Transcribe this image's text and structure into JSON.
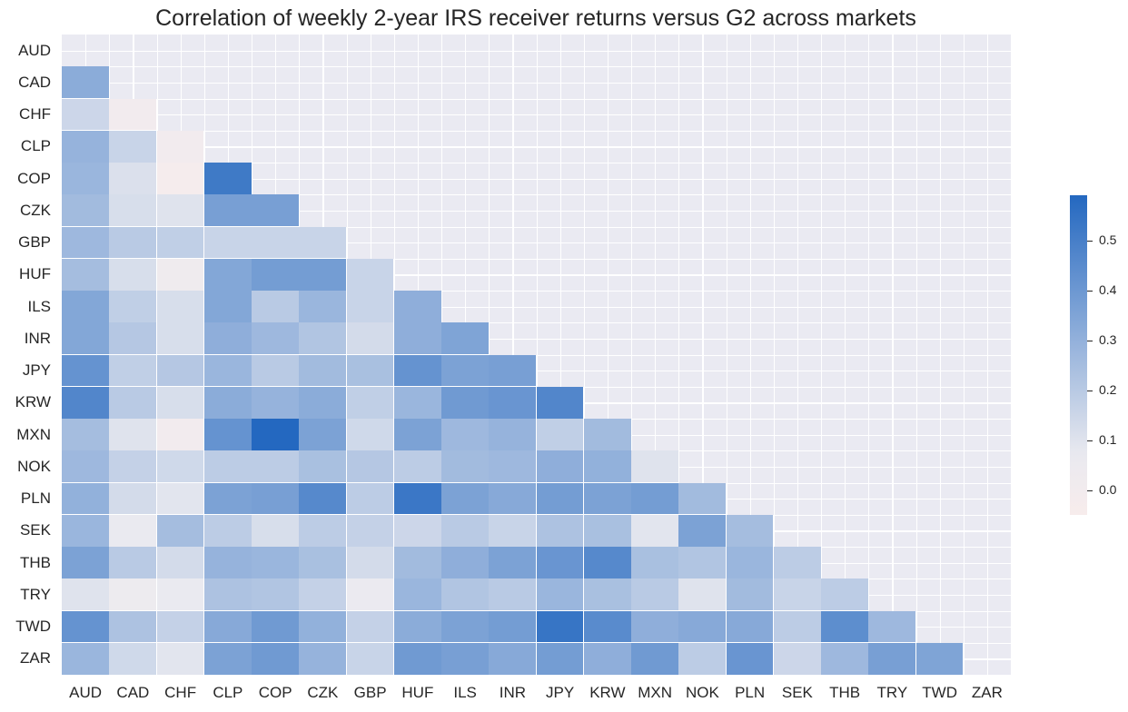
{
  "chart_data": {
    "type": "heatmap",
    "title": "Correlation of weekly 2-year IRS receiver returns versus G2 across markets",
    "xlabel": "",
    "ylabel": "",
    "labels": [
      "AUD",
      "CAD",
      "CHF",
      "CLP",
      "COP",
      "CZK",
      "GBP",
      "HUF",
      "ILS",
      "INR",
      "JPY",
      "KRW",
      "MXN",
      "NOK",
      "PLN",
      "SEK",
      "THB",
      "TRY",
      "TWD",
      "ZAR"
    ],
    "mask": "upper triangle including diagonal",
    "colorbar": {
      "min": -0.05,
      "max": 0.59,
      "ticks": [
        0.0,
        0.1,
        0.2,
        0.3,
        0.4,
        0.5
      ],
      "tick_labels": [
        "0.0",
        "0.1",
        "0.2",
        "0.3",
        "0.4",
        "0.5"
      ],
      "low_color": "#f7ecec",
      "mid_color": "#eaeaf0",
      "high_color": "#2468c0"
    },
    "values": [
      [],
      [
        0.32
      ],
      [
        0.15,
        0.0
      ],
      [
        0.29,
        0.16,
        0.0
      ],
      [
        0.28,
        0.11,
        -0.03,
        0.52
      ],
      [
        0.26,
        0.12,
        0.1,
        0.37,
        0.37
      ],
      [
        0.27,
        0.2,
        0.18,
        0.16,
        0.16,
        0.16
      ],
      [
        0.25,
        0.12,
        0.02,
        0.34,
        0.38,
        0.38,
        0.16
      ],
      [
        0.34,
        0.18,
        0.12,
        0.34,
        0.2,
        0.28,
        0.16,
        0.31
      ],
      [
        0.34,
        0.21,
        0.12,
        0.31,
        0.27,
        0.22,
        0.13,
        0.31,
        0.35
      ],
      [
        0.42,
        0.18,
        0.21,
        0.28,
        0.2,
        0.26,
        0.24,
        0.42,
        0.36,
        0.37
      ],
      [
        0.47,
        0.2,
        0.12,
        0.32,
        0.29,
        0.32,
        0.18,
        0.28,
        0.39,
        0.41,
        0.47
      ],
      [
        0.25,
        0.1,
        0.0,
        0.42,
        0.59,
        0.36,
        0.14,
        0.36,
        0.27,
        0.29,
        0.18,
        0.26
      ],
      [
        0.27,
        0.17,
        0.14,
        0.19,
        0.19,
        0.24,
        0.21,
        0.19,
        0.26,
        0.27,
        0.31,
        0.3,
        0.1
      ],
      [
        0.3,
        0.13,
        0.09,
        0.36,
        0.37,
        0.46,
        0.19,
        0.53,
        0.36,
        0.33,
        0.38,
        0.36,
        0.38,
        0.26
      ],
      [
        0.28,
        0.07,
        0.25,
        0.19,
        0.12,
        0.19,
        0.17,
        0.15,
        0.2,
        0.16,
        0.23,
        0.24,
        0.09,
        0.36,
        0.25
      ],
      [
        0.36,
        0.2,
        0.13,
        0.29,
        0.28,
        0.24,
        0.13,
        0.26,
        0.31,
        0.36,
        0.41,
        0.46,
        0.24,
        0.22,
        0.28,
        0.19
      ],
      [
        0.1,
        0.04,
        0.07,
        0.23,
        0.22,
        0.17,
        0.06,
        0.28,
        0.22,
        0.2,
        0.28,
        0.24,
        0.2,
        0.1,
        0.26,
        0.16,
        0.19
      ],
      [
        0.42,
        0.23,
        0.17,
        0.33,
        0.39,
        0.3,
        0.17,
        0.32,
        0.36,
        0.38,
        0.54,
        0.45,
        0.31,
        0.33,
        0.33,
        0.19,
        0.44,
        0.27
      ],
      [
        0.28,
        0.14,
        0.09,
        0.36,
        0.39,
        0.29,
        0.16,
        0.39,
        0.37,
        0.33,
        0.38,
        0.31,
        0.39,
        0.19,
        0.41,
        0.15,
        0.27,
        0.37,
        0.35
      ]
    ]
  }
}
